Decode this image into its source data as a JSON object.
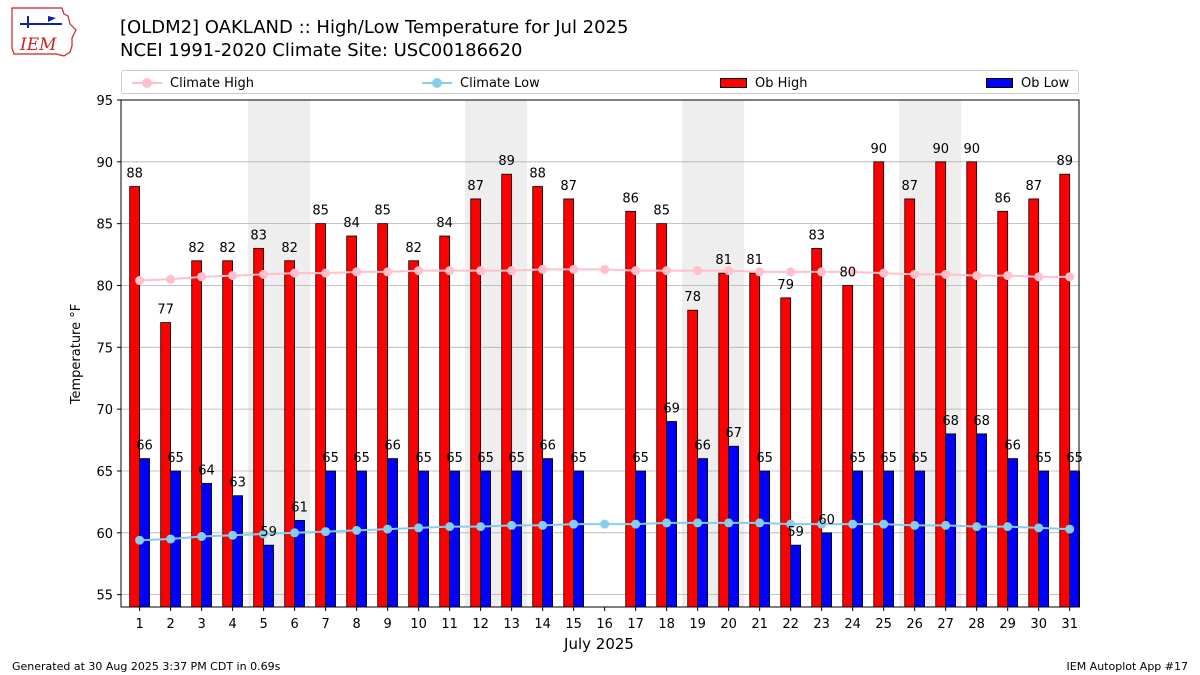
{
  "header": {
    "title_line1": "[OLDM2] OAKLAND :: High/Low Temperature for Jul 2025",
    "title_line2": "NCEI 1991-2020 Climate Site: USC00186620",
    "logo_text": "IEM"
  },
  "footer": {
    "left": "Generated at 30 Aug 2025 3:37 PM CDT in 0.69s",
    "right": "IEM Autoplot App #17"
  },
  "colors": {
    "ob_high": "#ff0000",
    "ob_low": "#0000ff",
    "climate_high": "#ffc0cb",
    "climate_low": "#87ceeb",
    "weekend_shade": "#eeeeee",
    "grid": "#b0b0b0"
  },
  "chart_data": {
    "type": "bar",
    "title": "[OLDM2] OAKLAND :: High/Low Temperature for Jul 2025",
    "subtitle": "NCEI 1991-2020 Climate Site: USC00186620",
    "xlabel": "July 2025",
    "ylabel": "Temperature °F",
    "ylim": [
      54.0,
      95
    ],
    "yticks": [
      55,
      60,
      65,
      70,
      75,
      80,
      85,
      90,
      95
    ],
    "x": [
      1,
      2,
      3,
      4,
      5,
      6,
      7,
      8,
      9,
      10,
      11,
      12,
      13,
      14,
      15,
      16,
      17,
      18,
      19,
      20,
      21,
      22,
      23,
      24,
      25,
      26,
      27,
      28,
      29,
      30,
      31
    ],
    "shaded_days": [
      5,
      6,
      12,
      13,
      19,
      20,
      26,
      27
    ],
    "grid": "horizontal",
    "legend_position": "top",
    "series": [
      {
        "name": "Climate High",
        "kind": "line",
        "values": [
          80.4,
          80.5,
          80.7,
          80.8,
          80.9,
          81.0,
          81.0,
          81.1,
          81.1,
          81.2,
          81.2,
          81.2,
          81.2,
          81.3,
          81.3,
          81.3,
          81.2,
          81.2,
          81.2,
          81.2,
          81.1,
          81.1,
          81.1,
          81.1,
          81.0,
          80.9,
          80.9,
          80.8,
          80.8,
          80.7,
          80.7
        ]
      },
      {
        "name": "Climate Low",
        "kind": "line",
        "values": [
          59.4,
          59.5,
          59.7,
          59.8,
          59.9,
          60.0,
          60.1,
          60.2,
          60.3,
          60.4,
          60.5,
          60.5,
          60.6,
          60.6,
          60.7,
          60.7,
          60.7,
          60.8,
          60.8,
          60.8,
          60.8,
          60.7,
          60.7,
          60.7,
          60.7,
          60.6,
          60.6,
          60.5,
          60.5,
          60.4,
          60.3
        ]
      },
      {
        "name": "Ob High",
        "kind": "bar",
        "values": [
          88,
          77,
          82,
          82,
          83,
          82,
          85,
          84,
          85,
          82,
          84,
          87,
          89,
          88,
          87,
          null,
          86,
          85,
          78,
          81,
          81,
          79,
          83,
          80,
          90,
          87,
          90,
          90,
          86,
          87,
          89
        ]
      },
      {
        "name": "Ob Low",
        "kind": "bar",
        "values": [
          66,
          65,
          64,
          63,
          59,
          61,
          65,
          65,
          66,
          65,
          65,
          65,
          65,
          66,
          65,
          null,
          65,
          69,
          66,
          67,
          65,
          59,
          60,
          65,
          65,
          65,
          68,
          68,
          66,
          65,
          65
        ]
      }
    ]
  }
}
